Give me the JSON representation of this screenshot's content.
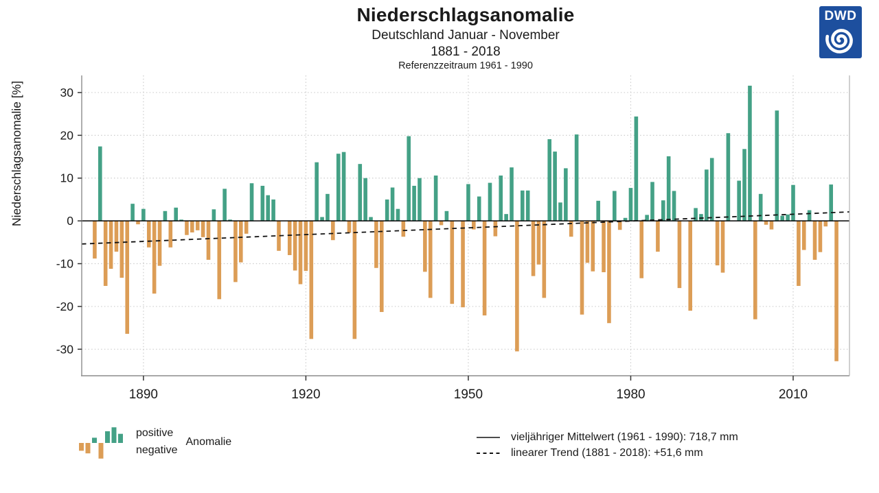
{
  "header": {
    "title": "Niederschlagsanomalie",
    "subtitle": "Deutschland Januar - November",
    "period": "1881 - 2018",
    "reference": "Referenzzeitraum 1961 - 1990"
  },
  "logo": {
    "text": "DWD",
    "background": "#1d4f9e",
    "foreground": "#ffffff"
  },
  "chart_data": {
    "type": "bar",
    "title": "Niederschlagsanomalie",
    "xlabel": "",
    "ylabel": "Niederschlagsanomalie [%]",
    "year_start": 1881,
    "year_end": 2018,
    "values": [
      -8.8,
      17.4,
      -15.2,
      -11.2,
      -7.2,
      -13.3,
      -26.4,
      4.0,
      -0.8,
      2.8,
      -6.2,
      -17.0,
      -10.5,
      2.3,
      -6.2,
      3.1,
      0.3,
      -3.3,
      -2.7,
      -2.2,
      -3.8,
      -9.1,
      2.7,
      -18.3,
      7.5,
      0.3,
      -14.3,
      -9.7,
      -3.0,
      8.8,
      0.0,
      8.2,
      6.0,
      5.0,
      -7.0,
      0.0,
      -8.0,
      -11.6,
      -14.8,
      -11.7,
      -27.6,
      13.7,
      0.9,
      6.3,
      -4.5,
      15.7,
      16.1,
      -2.8,
      -27.6,
      13.3,
      10.0,
      0.9,
      -11.0,
      -21.3,
      5.0,
      7.8,
      2.8,
      -3.7,
      19.8,
      8.2,
      10.0,
      -11.9,
      -18.0,
      10.6,
      -1.0,
      2.3,
      -19.4,
      0.0,
      -20.2,
      8.6,
      -2.0,
      5.7,
      -22.1,
      8.9,
      -3.6,
      10.6,
      1.6,
      12.5,
      -30.5,
      7.1,
      7.1,
      -12.9,
      -10.2,
      -18.0,
      19.1,
      16.2,
      4.3,
      12.3,
      -3.7,
      20.2,
      -21.9,
      -9.8,
      -11.8,
      4.7,
      -12.0,
      -23.9,
      7.0,
      -2.1,
      0.7,
      7.7,
      24.4,
      -13.4,
      1.4,
      9.1,
      -7.2,
      4.8,
      15.1,
      7.0,
      -15.7,
      0.0,
      -21.0,
      3.0,
      1.6,
      12.0,
      14.7,
      -10.4,
      -12.1,
      20.5,
      0.0,
      9.4,
      16.8,
      31.6,
      -23.0,
      6.3,
      -0.9,
      -2.0,
      25.8,
      1.2,
      1.5,
      8.4,
      -15.2,
      -6.8,
      2.5,
      -9.1,
      -7.3,
      -1.3,
      8.5,
      -32.8
    ],
    "x_ticks": [
      1890,
      1920,
      1950,
      1980,
      2010
    ],
    "y_ticks": [
      30,
      20,
      10,
      0,
      -10,
      -20,
      -30
    ],
    "xlim": [
      1878.6,
      2020.4
    ],
    "ylim": [
      -36.2,
      34
    ],
    "grid": true,
    "legend_position": "bottom",
    "positive_color": "#44a186",
    "negative_color": "#dc9d56",
    "grid_color": "#cccccc",
    "frame_color": "#8c8c8c",
    "zero_line": {
      "value": 0,
      "style": "solid",
      "color": "#000000"
    },
    "trend_line": {
      "style": "dashed",
      "color": "#111111",
      "x": [
        1878.6,
        2020.4
      ],
      "y": [
        -5.4,
        2.1
      ]
    }
  },
  "legend": {
    "positive_label": "positive",
    "negative_label": "negative",
    "anomaly_label": "Anomalie",
    "mini_bars": [
      -6,
      -8,
      4,
      -12,
      9,
      12,
      7
    ],
    "mean_label": "vieljähriger Mittelwert (1961 - 1990): 718,7 mm",
    "trend_label": "linearer Trend (1881 - 2018): +51,6 mm"
  }
}
